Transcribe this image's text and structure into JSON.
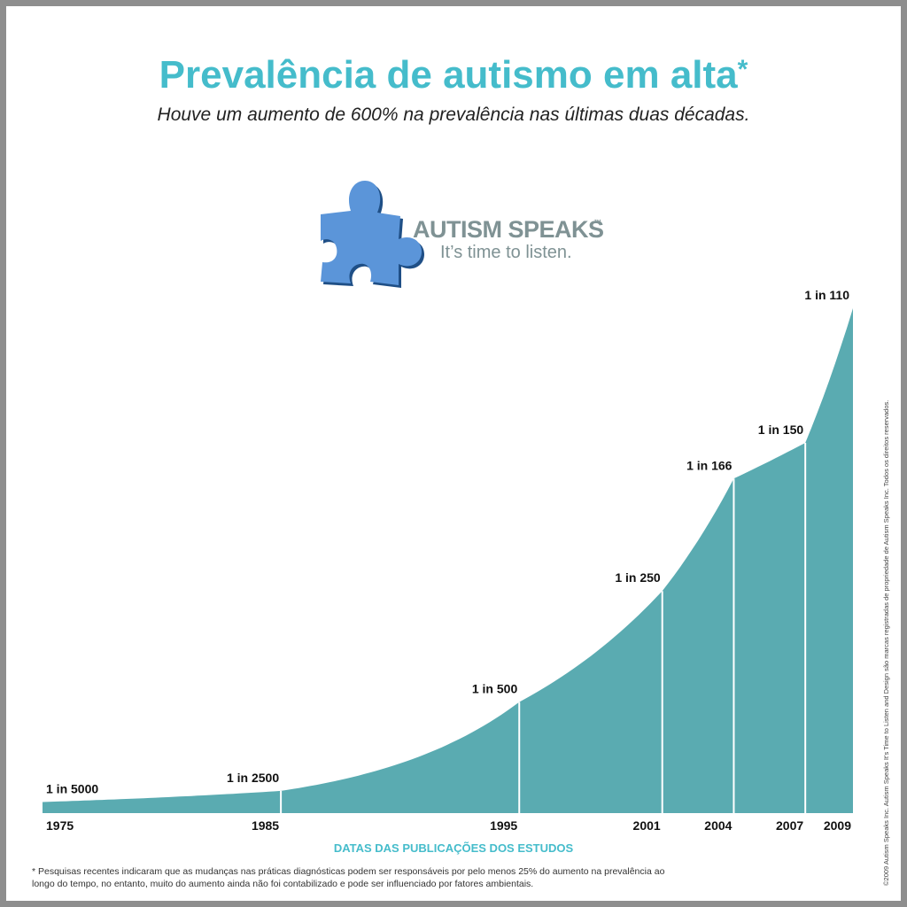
{
  "header": {
    "title": "Prevalência de autismo em alta",
    "title_mark": "*",
    "subtitle": "Houve um aumento de 600% na prevalência nas últimas duas décadas."
  },
  "logo": {
    "name": "AUTISM SPEAKS",
    "trademark": "™",
    "tagline": "It’s time to listen.",
    "icon": "puzzle-piece-icon",
    "color": "#5b95d9"
  },
  "chart_data": {
    "type": "area",
    "xlabel": "DATAS DAS PUBLICAÇÕES DOS ESTUDOS",
    "ylabel": "",
    "x": [
      1975,
      1985,
      1995,
      2001,
      2004,
      2007,
      2009
    ],
    "values": [
      0.0002,
      0.0004,
      0.002,
      0.004,
      0.006024,
      0.006667,
      0.009091
    ],
    "labels": [
      "1 in 5000",
      "1 in 2500",
      "1 in 500",
      "1 in 250",
      "1 in 166",
      "1 in 150",
      "1 in 110"
    ],
    "tick_labels": [
      "1975",
      "1985",
      "1995",
      "2001",
      "2004",
      "2007",
      "2009"
    ],
    "fill_color": "#5aabb1",
    "xlabel_color": "#45bccb",
    "grid": false,
    "legend": "none"
  },
  "footnote": "* Pesquisas recentes indicaram que as mudanças nas práticas diagnósticas podem ser responsáveis por pelo menos 25% do aumento na prevalência ao longo do tempo, no entanto, muito do aumento ainda não foi contabilizado e pode ser influenciado por fatores ambientais.",
  "copyright": "©2009 Autism Speaks Inc. Autism Speaks It's Time to Listen and Design são marcas registradas de propriedade de Autism Speaks Inc. Todos os direitos reservados."
}
